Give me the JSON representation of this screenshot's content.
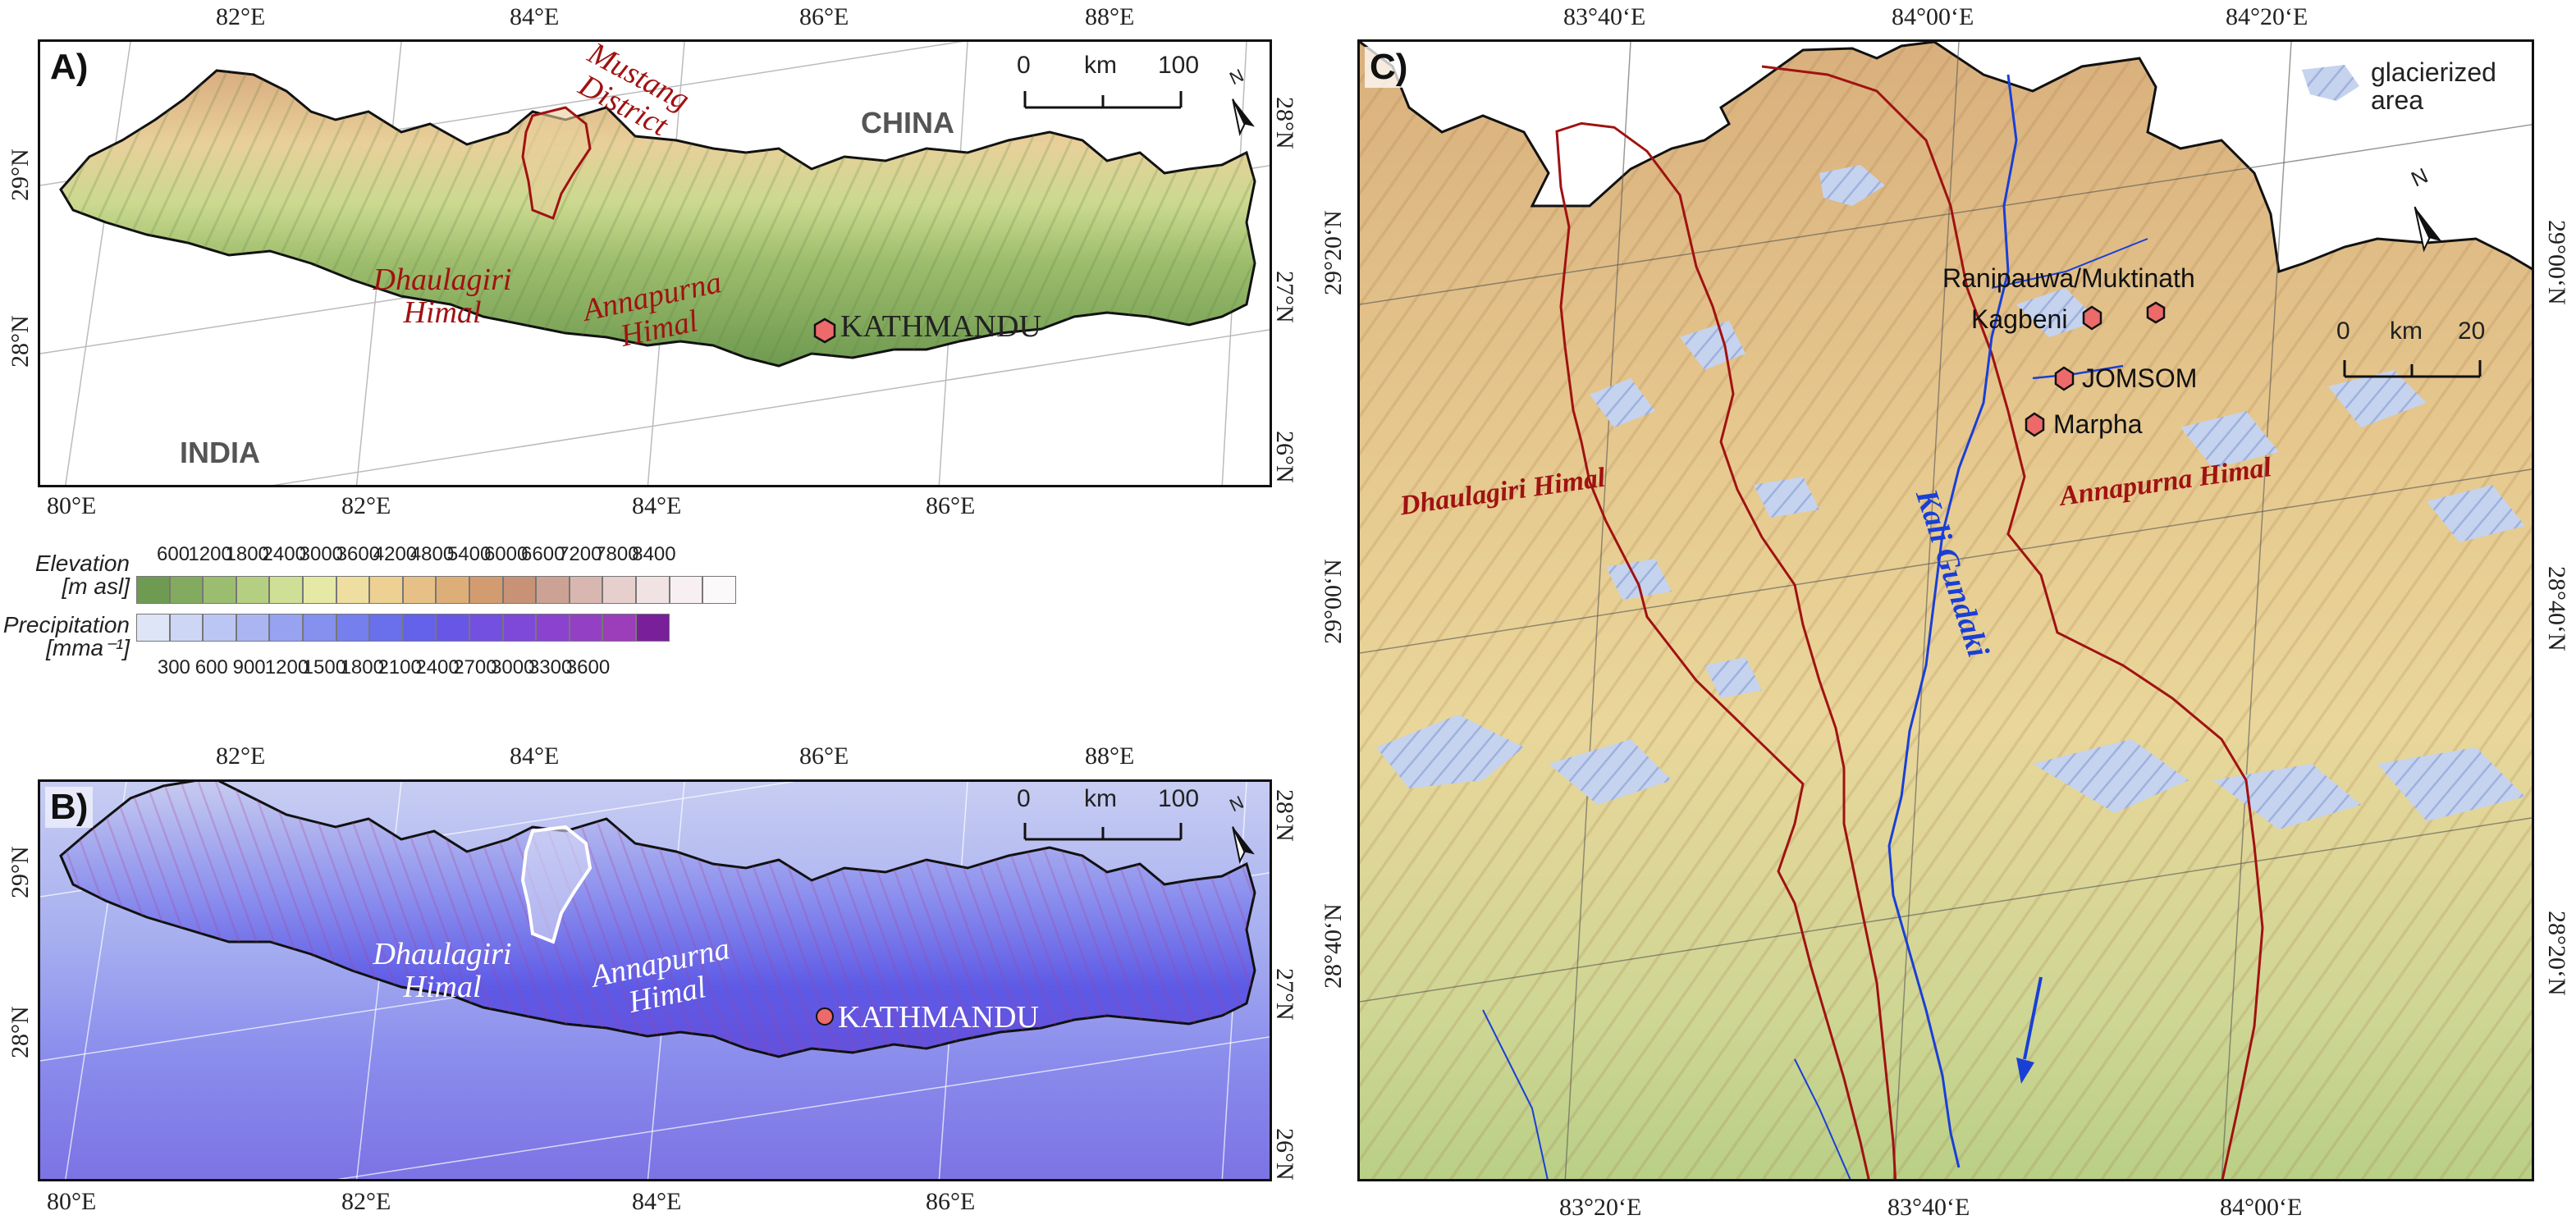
{
  "panel_a": {
    "label": "A)",
    "top_lon": [
      "82°E",
      "84°E",
      "86°E",
      "88°E"
    ],
    "bottom_lon": [
      "80°E",
      "82°E",
      "84°E",
      "86°E"
    ],
    "left_lat": [
      "29°N",
      "28°N"
    ],
    "right_lat": [
      "28°N",
      "27°N",
      "26°N"
    ],
    "district": "Mustang District",
    "dhaulagiri": "Dhaulagiri Himal",
    "annapurna": "Annapurna Himal",
    "capital": "KATHMANDU",
    "china": "CHINA",
    "india": "INDIA",
    "scale": {
      "zero": "0",
      "unit": "km",
      "max": "100"
    },
    "north": "N"
  },
  "legend": {
    "elevation_title": "Elevation",
    "elevation_unit": "[m asl]",
    "elevation_ticks": [
      "600",
      "1200",
      "1800",
      "2400",
      "3000",
      "3600",
      "4200",
      "4800",
      "5400",
      "6000",
      "6600",
      "7200",
      "7800",
      "8400"
    ],
    "elevation_colors": [
      "#6f9a52",
      "#83ab5f",
      "#9bbd70",
      "#b5cf82",
      "#cfdf95",
      "#e6e9a5",
      "#eedfa0",
      "#ecd193",
      "#e6c086",
      "#deae79",
      "#d29c70",
      "#c89276",
      "#cba293",
      "#d8b7b0",
      "#e6cfcc",
      "#f1e2e4",
      "#f8eff2",
      "#fcf9fb"
    ],
    "precip_title": "Precipitation",
    "precip_unit": "[mma⁻¹]",
    "precip_ticks": [
      "300",
      "600",
      "900",
      "1200",
      "1500",
      "1800",
      "2100",
      "2400",
      "2700",
      "3000",
      "3300",
      "3600"
    ],
    "precip_colors": [
      "#dde5f7",
      "#cdd6f5",
      "#bcc6f4",
      "#aab5f2",
      "#97a2f0",
      "#8590ef",
      "#757fee",
      "#6a6fec",
      "#6461ea",
      "#6857e6",
      "#7350e0",
      "#7e48d8",
      "#8a42cf",
      "#9440c4",
      "#9c3dba",
      "#7a1f9a"
    ]
  },
  "panel_b": {
    "label": "B)",
    "top_lon": [
      "82°E",
      "84°E",
      "86°E",
      "88°E"
    ],
    "bottom_lon": [
      "80°E",
      "82°E",
      "84°E",
      "86°E"
    ],
    "left_lat": [
      "29°N",
      "28°N"
    ],
    "right_lat": [
      "28°N",
      "27°N",
      "26°N"
    ],
    "dhaulagiri": "Dhaulagiri Himal",
    "annapurna": "Annapurna Himal",
    "capital": "KATHMANDU",
    "scale": {
      "zero": "0",
      "unit": "km",
      "max": "100"
    },
    "north": "N"
  },
  "panel_c": {
    "label": "C)",
    "top_lon": [
      "83°40‘E",
      "84°00‘E",
      "84°20‘E"
    ],
    "bottom_lon": [
      "83°20‘E",
      "83°40‘E",
      "84°00‘E"
    ],
    "left_lat": [
      "29°20‘N",
      "29°00‘N",
      "28°40‘N"
    ],
    "right_lat": [
      "29°00‘N",
      "28°40‘N",
      "28°20‘N"
    ],
    "glacier_legend": "glacierized area",
    "scale": {
      "zero": "0",
      "unit": "km",
      "max": "20"
    },
    "north": "N",
    "towns": [
      "Ranipauwa/Muktinath",
      "Kagbeni",
      "JOMSOM",
      "Marpha"
    ],
    "river": "Kali Gundaki",
    "dhaulagiri": "Dhaulagiri Himal",
    "annapurna": "Annapurna Himal"
  },
  "colors": {
    "district_border": "#a01212",
    "river": "#1a3fd6",
    "town_marker": "#ec6a6a"
  }
}
